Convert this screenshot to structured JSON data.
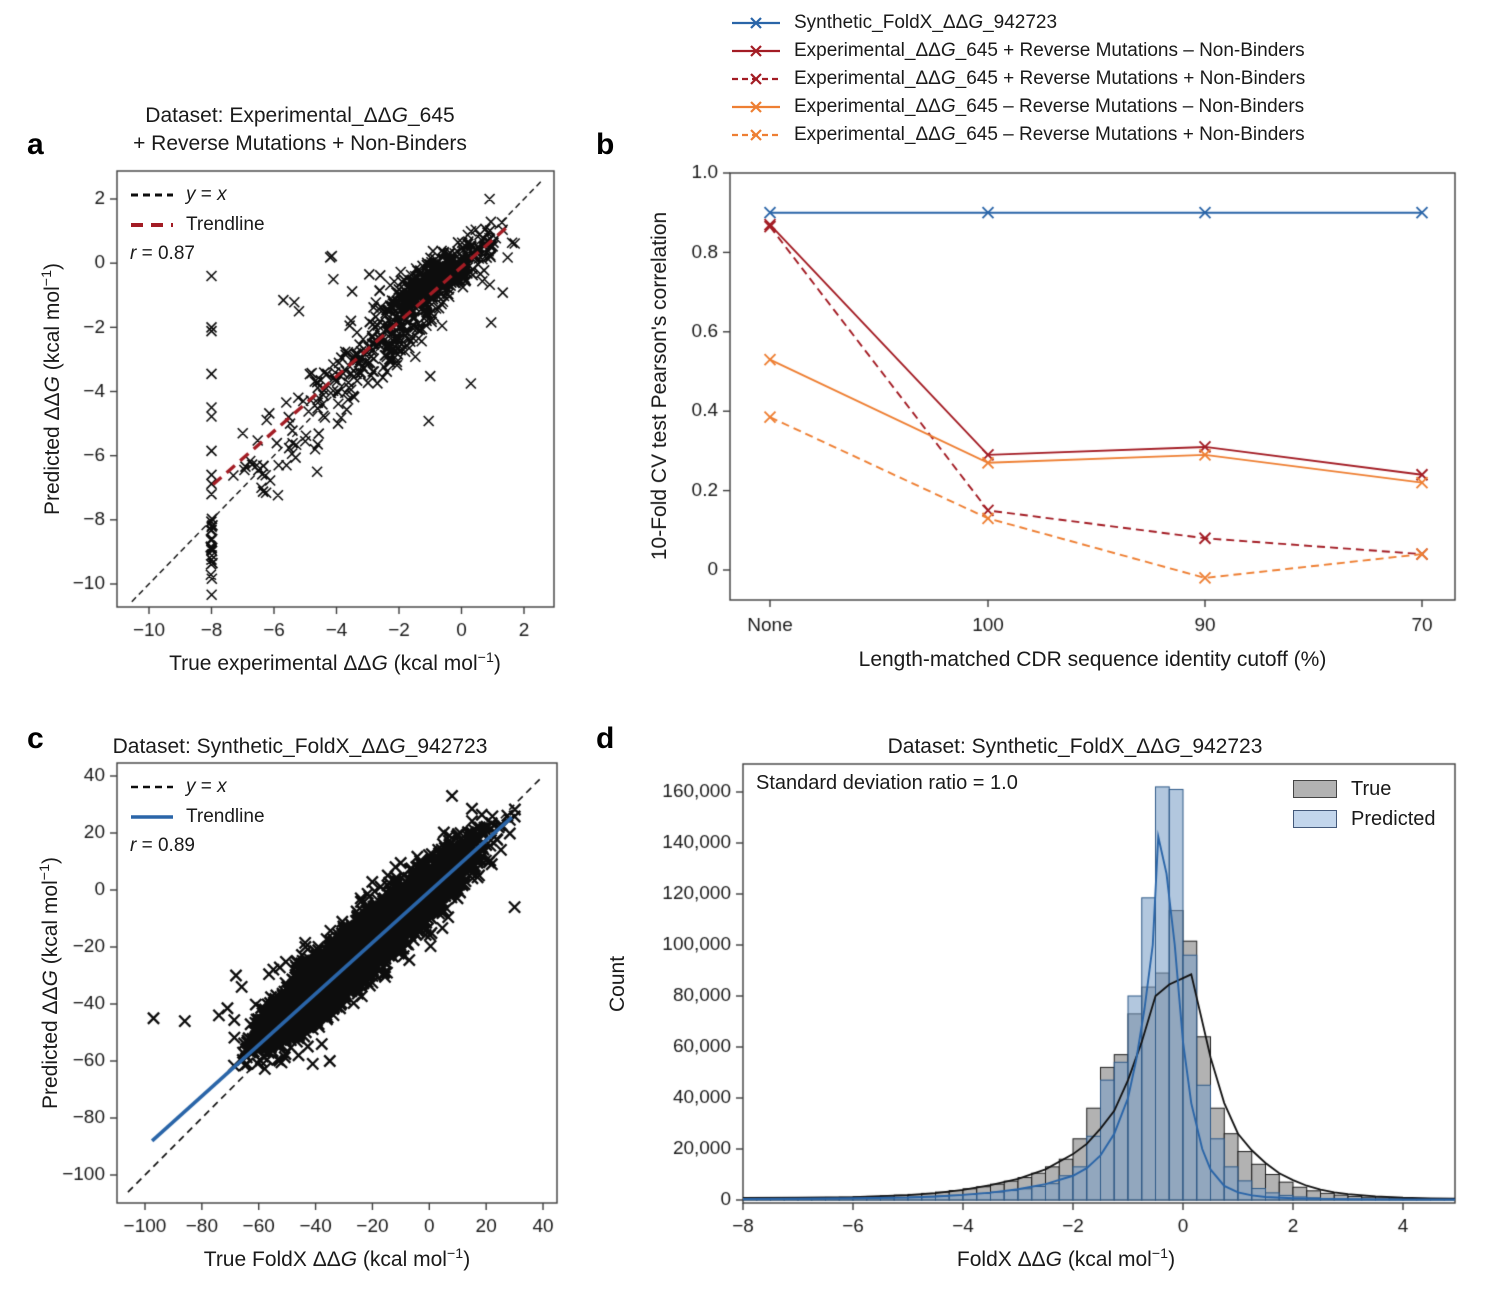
{
  "colors": {
    "blue": "#2a65a8",
    "dark_red": "#a31c24",
    "orange": "#ee7f33",
    "marker_black": "#0d0d0d",
    "axis": "#3c3c3c",
    "hist_true_fill": "#b2b2b2",
    "hist_true_edge": "#1c1c1c",
    "hist_pred_fill": "rgba(122,158,199,0.58)",
    "hist_pred_edge": "#2f5a88",
    "hist_pred_swatch": "#c3d6ec"
  },
  "chart_data": [
    {
      "id": "a",
      "letter": "a",
      "type": "scatter",
      "title_lines": [
        "Dataset: Experimental_ΔΔ*G*_645",
        "+ Reverse Mutations + Non-Binders"
      ],
      "xlabel": "True experimental ΔΔ*G* (kcal mol^{−1})",
      "ylabel": "Predicted ΔΔ*G* (kcal mol^{−1})",
      "r_label": "*r* = 0.87",
      "xlim": [
        -11.0,
        2.96
      ],
      "ylim": [
        -10.72,
        2.87
      ],
      "xticks": [
        -10,
        -8,
        -6,
        -4,
        -2,
        0,
        2
      ],
      "yticks": [
        2,
        0,
        -2,
        -4,
        -6,
        -8,
        -10
      ],
      "legend": [
        {
          "label": "*y* = *x*",
          "color": "#0d0d0d",
          "dash": [
            7,
            5
          ],
          "width": 3
        },
        {
          "label": "Trendline",
          "color": "#a31c24",
          "dash": [
            12,
            8
          ],
          "width": 4
        }
      ],
      "identity_line": {
        "x1": -10.55,
        "y1": -10.55,
        "x2": 2.62,
        "y2": 2.62,
        "dash": [
          6,
          4
        ],
        "width": 1.4,
        "color": "#0d0d0d"
      },
      "trendline": {
        "x1": -7.95,
        "y1": -6.9,
        "x2": 1.55,
        "y2": 1.2,
        "dash": [
          11,
          7
        ],
        "width": 3.4,
        "color": "#a31c24"
      },
      "point_clusters": [
        {
          "n": 430,
          "cx": -0.75,
          "cy": -0.45,
          "sx": 0.85,
          "sy": 0.62,
          "corr": 0.78
        },
        {
          "n": 150,
          "cx": -2.3,
          "cy": -2.35,
          "sx": 0.75,
          "sy": 0.66,
          "corr": 0.55
        },
        {
          "n": 60,
          "cx": -3.9,
          "cy": -3.75,
          "sx": 0.8,
          "sy": 0.6,
          "corr": 0.5
        },
        {
          "n": 22,
          "cx": -6.15,
          "cy": -6.25,
          "sx": 0.7,
          "sy": 0.5,
          "corr": 0.6
        },
        {
          "n": 26,
          "cx": -8.0,
          "cy": -8.8,
          "sx": 0.02,
          "sy": 0.58,
          "corr": 0,
          "ymax": -7.88
        }
      ],
      "clip": {
        "xmin": -10.9,
        "xmax": 2.85,
        "ymin": -10.55,
        "ymax": 2.7
      },
      "outliers": [
        [
          -8,
          -0.4
        ],
        [
          -8,
          -2.0
        ],
        [
          -8,
          -2.12
        ],
        [
          -8,
          -3.45
        ],
        [
          -8,
          -4.5
        ],
        [
          -8,
          -4.78
        ],
        [
          -8,
          -5.85
        ],
        [
          -8,
          -6.6
        ],
        [
          -8,
          -6.88
        ],
        [
          -8,
          -7.2
        ],
        [
          -7.3,
          -6.62
        ],
        [
          -7.0,
          -5.3
        ],
        [
          -6.7,
          -6.28
        ],
        [
          -6.55,
          -6.3
        ],
        [
          -6.5,
          -6.45
        ],
        [
          -6.4,
          -7.0
        ],
        [
          -6.35,
          -7.12
        ],
        [
          -6.15,
          -4.68
        ],
        [
          -5.85,
          -6.3
        ],
        [
          -5.6,
          -6.3
        ],
        [
          -5.7,
          -1.15
        ],
        [
          -5.35,
          -1.22
        ],
        [
          -5.2,
          -1.5
        ],
        [
          -5.0,
          -5.55
        ],
        [
          -4.62,
          -6.5
        ],
        [
          -4.2,
          0.18
        ],
        [
          -4.15,
          0.22
        ],
        [
          -4.1,
          -0.5
        ],
        [
          -3.95,
          -5.0
        ],
        [
          -3.85,
          -4.82
        ],
        [
          -3.5,
          -0.88
        ],
        [
          -2.95,
          -0.35
        ],
        [
          -2.6,
          -0.38
        ],
        [
          -1.05,
          -4.92
        ],
        [
          -1.0,
          -3.52
        ],
        [
          0.3,
          -3.75
        ],
        [
          1.32,
          -0.92
        ],
        [
          0.95,
          -1.85
        ],
        [
          0.9,
          2.0
        ],
        [
          -4.45,
          -4.4
        ]
      ],
      "marker": {
        "size": 5,
        "lw": 1.6
      }
    },
    {
      "id": "b",
      "letter": "b",
      "type": "line",
      "xlabel": "Length-matched CDR sequence identity cutoff (%)",
      "ylabel": "10-Fold CV test Pearson's correlation",
      "categories": [
        "None",
        "100",
        "90",
        "70"
      ],
      "yticks": [
        0,
        0.2,
        0.4,
        0.6,
        0.8,
        1.0
      ],
      "ylim": [
        -0.076,
        1.0
      ],
      "series": [
        {
          "name": "Synthetic_FoldX_ΔΔ*G*_942723",
          "color": "#2a65a8",
          "dashed": false,
          "values": [
            0.9,
            0.9,
            0.9,
            0.9
          ]
        },
        {
          "name": "Experimental_ΔΔ*G*_645 + Reverse Mutations – Non-Binders",
          "color": "#a31c24",
          "dashed": false,
          "values": [
            0.87,
            0.29,
            0.31,
            0.24
          ]
        },
        {
          "name": "Experimental_ΔΔ*G*_645 + Reverse Mutations + Non-Binders",
          "color": "#a31c24",
          "dashed": true,
          "values": [
            0.865,
            0.15,
            0.08,
            0.04
          ]
        },
        {
          "name": "Experimental_ΔΔ*G*_645 – Reverse Mutations – Non-Binders",
          "color": "#ee7f33",
          "dashed": false,
          "values": [
            0.53,
            0.27,
            0.29,
            0.22
          ]
        },
        {
          "name": "Experimental_ΔΔ*G*_645 – Reverse Mutations + Non-Binders",
          "color": "#ee7f33",
          "dashed": true,
          "values": [
            0.385,
            0.13,
            -0.02,
            0.04
          ]
        }
      ],
      "marker": {
        "size": 5.5,
        "lw": 1.9
      }
    },
    {
      "id": "c",
      "letter": "c",
      "type": "scatter",
      "title_lines": [
        "Dataset: Synthetic_FoldX_ΔΔ*G*_942723"
      ],
      "xlabel": "True FoldX ΔΔ*G* (kcal mol^{−1})",
      "ylabel": "Predicted ΔΔ*G* (kcal mol^{−1})",
      "r_label": "*r* = 0.89",
      "xlim": [
        -109.8,
        44.9
      ],
      "ylim": [
        -109.8,
        44.5
      ],
      "xticks": [
        -100,
        -80,
        -60,
        -40,
        -20,
        0,
        20,
        40
      ],
      "yticks": [
        40,
        20,
        0,
        -20,
        -40,
        -60,
        -80,
        -100
      ],
      "legend": [
        {
          "label": "*y* = *x*",
          "color": "#0d0d0d",
          "dash": [
            7,
            5
          ],
          "width": 2.6
        },
        {
          "label": "Trendline",
          "color": "#2a65a8",
          "dash": [],
          "width": 3.6
        }
      ],
      "identity_line": {
        "x1": -106,
        "y1": -106,
        "x2": 39,
        "y2": 39,
        "dash": [
          7,
          5
        ],
        "width": 1.6,
        "color": "#0d0d0d"
      },
      "trendline": {
        "x1": -97.5,
        "y1": -88,
        "x2": 29,
        "y2": 25.5,
        "dash": [],
        "width": 3.6,
        "color": "#2a65a8"
      },
      "point_clusters": [
        {
          "n": 3600,
          "cx": -24,
          "cy": -21,
          "sx": 16,
          "sy": 14.5,
          "corr": 0.92
        },
        {
          "n": 800,
          "cx": -40,
          "cy": -35,
          "sx": 9,
          "sy": 8,
          "corr": 0.85
        },
        {
          "n": 300,
          "cx": 6,
          "cy": 7,
          "sx": 8,
          "sy": 7,
          "corr": 0.8
        },
        {
          "n": 80,
          "cx": -56,
          "cy": -50,
          "sx": 5,
          "sy": 4.5,
          "corr": 0.7
        }
      ],
      "clip": {
        "xmin": -69,
        "xmax": 31,
        "ymin": -63,
        "ymax": 33.5
      },
      "outliers": [
        [
          -97,
          -45
        ],
        [
          -86,
          -46
        ],
        [
          -74,
          -44
        ],
        [
          -71,
          -41.5
        ],
        [
          -66,
          -34
        ],
        [
          -68,
          -30
        ],
        [
          -63,
          -57
        ],
        [
          -57,
          -59.5
        ],
        [
          -52,
          -60.5
        ],
        [
          -46,
          -58
        ],
        [
          -41,
          -61
        ],
        [
          -35,
          -60
        ],
        [
          30,
          -6
        ],
        [
          8,
          33
        ],
        [
          15,
          28.5
        ]
      ],
      "marker": {
        "size": 5.6,
        "lw": 2.3
      }
    },
    {
      "id": "d",
      "letter": "d",
      "type": "histogram",
      "title_lines": [
        "Dataset: Synthetic_FoldX_ΔΔ*G*_942723"
      ],
      "xlabel": "FoldX ΔΔ*G* (kcal mol^{−1})",
      "ylabel": "Count",
      "annotation": "Standard deviation ratio = 1.0",
      "legend": [
        {
          "label": "True",
          "fill": "#b2b2b2",
          "edge": "#444444"
        },
        {
          "label": "Predicted",
          "fill": "#c3d6ec",
          "edge": "#44597a"
        }
      ],
      "xlim": [
        -8.0,
        4.95
      ],
      "ylim": [
        0,
        170000
      ],
      "xticks": [
        -8,
        -6,
        -4,
        -2,
        0,
        2,
        4
      ],
      "yticks": [
        0,
        20000,
        40000,
        60000,
        80000,
        100000,
        120000,
        140000,
        160000
      ],
      "bin_start": -8.0,
      "bin_width": 0.25,
      "true_counts": [
        700,
        700,
        750,
        800,
        850,
        900,
        1000,
        1100,
        1250,
        1400,
        1600,
        1900,
        2200,
        2600,
        3100,
        3700,
        4400,
        5200,
        6200,
        7400,
        8800,
        10500,
        13000,
        16000,
        24000,
        36000,
        52000,
        57000,
        73000,
        83500,
        89000,
        113500,
        101500,
        64000,
        36000,
        26000,
        19000,
        14000,
        10000,
        7000,
        5000,
        3600,
        2600,
        1900,
        1400,
        1100,
        850,
        700,
        580,
        500,
        430,
        380
      ],
      "predicted_counts": [
        350,
        350,
        380,
        400,
        430,
        460,
        500,
        550,
        620,
        700,
        800,
        950,
        1100,
        1300,
        1550,
        1850,
        2200,
        2600,
        3100,
        3700,
        4400,
        5300,
        6400,
        9500,
        13000,
        25000,
        47000,
        54000,
        80000,
        118500,
        162000,
        161000,
        96000,
        45000,
        24000,
        13000,
        7500,
        4500,
        2800,
        1800,
        1200,
        850,
        600,
        450,
        350,
        300,
        280,
        260,
        240,
        220,
        210,
        200
      ],
      "true_curve": [
        [
          -8,
          800
        ],
        [
          -7,
          900
        ],
        [
          -6,
          1100
        ],
        [
          -5,
          1900
        ],
        [
          -4.5,
          2700
        ],
        [
          -4,
          4000
        ],
        [
          -3.5,
          5800
        ],
        [
          -3,
          8300
        ],
        [
          -2.5,
          12000
        ],
        [
          -2,
          18000
        ],
        [
          -1.75,
          22000
        ],
        [
          -1.5,
          28000
        ],
        [
          -1.25,
          35000
        ],
        [
          -1,
          47000
        ],
        [
          -0.75,
          62000
        ],
        [
          -0.5,
          80000
        ],
        [
          -0.25,
          84500
        ],
        [
          0.15,
          88500
        ],
        [
          0.35,
          70000
        ],
        [
          0.5,
          56000
        ],
        [
          0.75,
          38000
        ],
        [
          1,
          26000
        ],
        [
          1.25,
          19500
        ],
        [
          1.5,
          14500
        ],
        [
          1.75,
          10500
        ],
        [
          2,
          7800
        ],
        [
          2.25,
          5600
        ],
        [
          2.5,
          4100
        ],
        [
          2.75,
          3000
        ],
        [
          3,
          2300
        ],
        [
          3.5,
          1400
        ],
        [
          4,
          900
        ],
        [
          4.5,
          650
        ],
        [
          4.95,
          500
        ]
      ],
      "predicted_curve": [
        [
          -8,
          400
        ],
        [
          -7,
          500
        ],
        [
          -6,
          700
        ],
        [
          -5,
          1000
        ],
        [
          -4.5,
          1400
        ],
        [
          -4,
          2000
        ],
        [
          -3.5,
          2900
        ],
        [
          -3,
          4200
        ],
        [
          -2.5,
          6200
        ],
        [
          -2,
          9500
        ],
        [
          -1.75,
          12500
        ],
        [
          -1.5,
          17500
        ],
        [
          -1.25,
          26000
        ],
        [
          -1,
          40000
        ],
        [
          -0.85,
          55000
        ],
        [
          -0.7,
          75000
        ],
        [
          -0.55,
          100000
        ],
        [
          -0.45,
          142500
        ],
        [
          -0.3,
          128000
        ],
        [
          -0.15,
          100000
        ],
        [
          0,
          62000
        ],
        [
          0.15,
          38000
        ],
        [
          0.35,
          20000
        ],
        [
          0.5,
          12000
        ],
        [
          0.75,
          5500
        ],
        [
          1,
          3000
        ],
        [
          1.25,
          1800
        ],
        [
          1.5,
          1200
        ],
        [
          2,
          700
        ],
        [
          2.5,
          450
        ],
        [
          3,
          300
        ],
        [
          4,
          220
        ],
        [
          4.95,
          180
        ]
      ]
    }
  ]
}
